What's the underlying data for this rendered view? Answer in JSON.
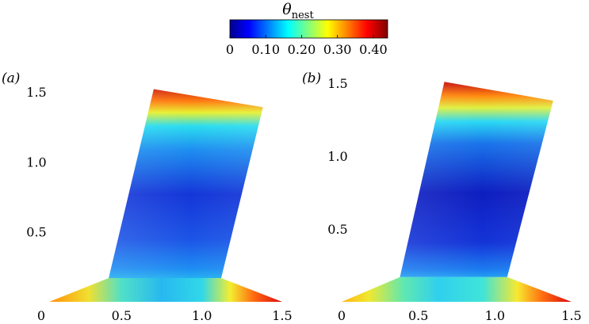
{
  "chart_data": {
    "type": "heatmap",
    "colorbar": {
      "title": "θ",
      "title_subscript": "nest",
      "ticks": [
        "0",
        "0.10",
        "0.20",
        "0.30",
        "0.40"
      ],
      "tick_values": [
        0,
        0.1,
        0.2,
        0.3,
        0.4
      ],
      "range": [
        0,
        0.44
      ],
      "colormap": "jet",
      "stops": [
        "#00008f",
        "#0000ff",
        "#00ffff",
        "#ffff00",
        "#ff0000",
        "#800000"
      ]
    },
    "panels": [
      {
        "label": "(a)",
        "x_ticks": [
          "0",
          "0.5",
          "1.0",
          "1.5"
        ],
        "x_tick_values": [
          0,
          0.5,
          1.0,
          1.5
        ],
        "y_ticks": [
          "0.5",
          "1.0",
          "1.5"
        ],
        "y_tick_values": [
          0.5,
          1.0,
          1.5
        ],
        "xlim": [
          0,
          1.5
        ],
        "ylim": [
          0,
          1.6
        ],
        "domain": {
          "base": [
            [
              0.05,
              0.0
            ],
            [
              1.5,
              0.0
            ],
            [
              1.12,
              0.17
            ],
            [
              0.42,
              0.17
            ]
          ],
          "column": [
            [
              0.42,
              0.17
            ],
            [
              1.12,
              0.17
            ],
            [
              1.38,
              1.39
            ],
            [
              0.7,
              1.52
            ]
          ]
        }
      },
      {
        "label": "(b)",
        "x_ticks": [
          "0",
          "0.5",
          "1.0",
          "1.5"
        ],
        "x_tick_values": [
          0,
          0.5,
          1.0,
          1.5
        ],
        "y_ticks": [
          "0.5",
          "1.0",
          "1.5"
        ],
        "y_tick_values": [
          0.5,
          1.0,
          1.5
        ],
        "xlim": [
          0,
          1.5
        ],
        "ylim": [
          0,
          1.6
        ],
        "domain": {
          "base": [
            [
              0.0,
              0.0
            ],
            [
              1.5,
              0.0
            ],
            [
              1.08,
              0.17
            ],
            [
              0.38,
              0.17
            ]
          ],
          "column": [
            [
              0.38,
              0.17
            ],
            [
              1.08,
              0.17
            ],
            [
              1.38,
              1.38
            ],
            [
              0.67,
              1.51
            ]
          ]
        }
      }
    ]
  }
}
